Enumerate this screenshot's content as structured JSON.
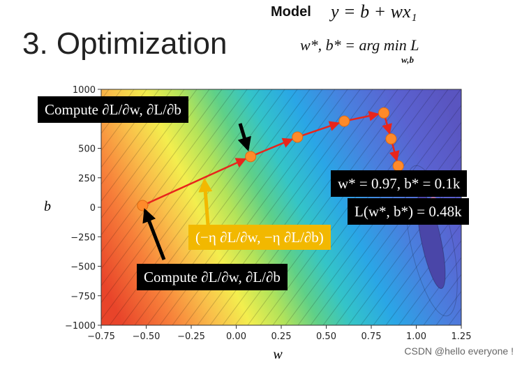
{
  "header": {
    "title": "3. Optimization",
    "model_label": "Model",
    "model_equation": "y = b + wx₁",
    "argmin_equation": "w*, b* = arg min L",
    "argmin_subscript": "w,b"
  },
  "annotations": {
    "compute_top": "Compute ∂L/∂w, ∂L/∂b",
    "compute_bottom": "Compute ∂L/∂w, ∂L/∂b",
    "update_step": "(−η ∂L/∂w, −η ∂L/∂b)",
    "optimum_params": "w* = 0.97, b* = 0.1k",
    "optimum_loss": "L(w*, b*) = 0.48k"
  },
  "plot": {
    "xlabel": "w",
    "ylabel": "b",
    "x_ticks": [
      "−0.75",
      "−0.50",
      "−0.25",
      "0.00",
      "0.25",
      "0.50",
      "0.75",
      "1.00",
      "1.25"
    ],
    "y_ticks": [
      "1000",
      "750",
      "500",
      "250",
      "0",
      "−250",
      "−500",
      "−750",
      "−1000"
    ],
    "xlim": [
      -0.75,
      1.25
    ],
    "ylim": [
      -1000,
      1000
    ],
    "path_points": [
      {
        "w": -0.52,
        "b": 15
      },
      {
        "w": 0.08,
        "b": 430
      },
      {
        "w": 0.34,
        "b": 595
      },
      {
        "w": 0.6,
        "b": 730
      },
      {
        "w": 0.82,
        "b": 800
      },
      {
        "w": 0.86,
        "b": 580
      },
      {
        "w": 0.9,
        "b": 350
      }
    ],
    "optimum_point": {
      "w": 0.97,
      "b": 100
    },
    "colors": {
      "path": "#e8251c",
      "point": "#ff8a2a",
      "optimum": "#e8251c",
      "arrow_black": "#000000",
      "arrow_gold": "#f2b800"
    }
  },
  "watermark": "CSDN @hello everyone !"
}
